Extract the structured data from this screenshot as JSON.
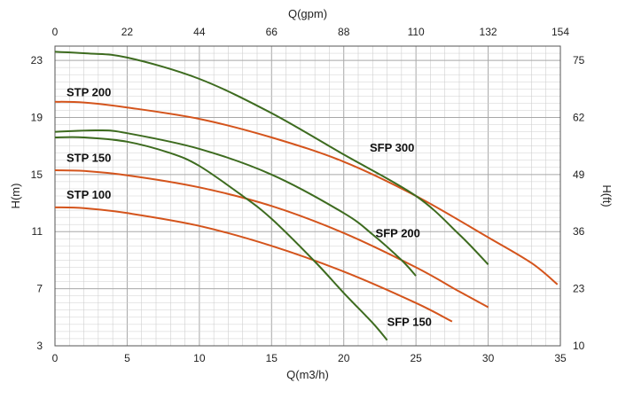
{
  "chart_data": {
    "type": "line",
    "title": "",
    "xlabel": "Q(m3/h)",
    "ylabel": "H(m)",
    "x2label": "Q(gpm)",
    "y2label": "H(ft)",
    "xlim": [
      0,
      35
    ],
    "ylim": [
      3,
      24
    ],
    "x_ticks": [
      0,
      5,
      10,
      15,
      20,
      25,
      30,
      35
    ],
    "y_ticks": [
      3,
      7,
      11,
      15,
      19,
      23
    ],
    "x2_ticks": [
      "0",
      "22",
      "44",
      "66",
      "88",
      "110",
      "132",
      "154"
    ],
    "y2_ticks": [
      "10",
      "23",
      "36",
      "49",
      "62",
      "75"
    ],
    "grid": true,
    "colors": {
      "STP": "#d4541c",
      "SFP": "#3d6b1f",
      "grid": "#cfcfcf",
      "major_grid": "#a8a8a8"
    },
    "series": [
      {
        "name": "STP 100",
        "family": "STP",
        "x": [
          0,
          2,
          5,
          10,
          15,
          20,
          25,
          27.5
        ],
        "y": [
          12.7,
          12.65,
          12.3,
          11.4,
          10.0,
          8.2,
          6.0,
          4.7
        ]
      },
      {
        "name": "STP 150",
        "family": "STP",
        "x": [
          0,
          2,
          5,
          10,
          15,
          20,
          25,
          28,
          30
        ],
        "y": [
          15.3,
          15.25,
          14.95,
          14.1,
          12.8,
          10.9,
          8.5,
          6.8,
          5.7
        ]
      },
      {
        "name": "STP 200",
        "family": "STP",
        "x": [
          0,
          2,
          5,
          10,
          15,
          20,
          25,
          30,
          33,
          34.8
        ],
        "y": [
          20.1,
          20.05,
          19.7,
          18.9,
          17.6,
          15.9,
          13.5,
          10.6,
          8.8,
          7.3
        ]
      },
      {
        "name": "SFP 150",
        "family": "SFP",
        "x": [
          0,
          2,
          5,
          8,
          10,
          13,
          15,
          18,
          20,
          22,
          23
        ],
        "y": [
          17.6,
          17.6,
          17.3,
          16.5,
          15.6,
          13.5,
          11.9,
          8.9,
          6.7,
          4.6,
          3.4
        ]
      },
      {
        "name": "SFP 200",
        "family": "SFP",
        "x": [
          0,
          3,
          5,
          10,
          15,
          20,
          22,
          24,
          25
        ],
        "y": [
          18.0,
          18.1,
          17.9,
          16.8,
          15.0,
          12.3,
          10.8,
          9.0,
          7.9
        ]
      },
      {
        "name": "SFP 300",
        "family": "SFP",
        "x": [
          0,
          2,
          5,
          10,
          15,
          20,
          25,
          28,
          30
        ],
        "y": [
          23.6,
          23.5,
          23.2,
          21.7,
          19.3,
          16.4,
          13.5,
          10.8,
          8.7
        ]
      }
    ],
    "labels": [
      {
        "text": "STP 200",
        "x": 0.8,
        "y": 20.5
      },
      {
        "text": "STP 150",
        "x": 0.8,
        "y": 15.9
      },
      {
        "text": "STP 100",
        "x": 0.8,
        "y": 13.3
      },
      {
        "text": "SFP 300",
        "x": 21.8,
        "y": 16.6
      },
      {
        "text": "SFP 200",
        "x": 22.2,
        "y": 10.6
      },
      {
        "text": "SFP 150",
        "x": 23.0,
        "y": 4.4
      }
    ]
  }
}
